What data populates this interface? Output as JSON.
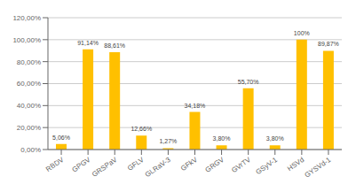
{
  "chart_data": {
    "type": "bar",
    "categories": [
      "RBDV",
      "GPGV",
      "GRSPaV",
      "GFLV",
      "GLRaV-3",
      "GFkV",
      "GRGV",
      "GVrTV",
      "GSyV-1",
      "HSVd",
      "GYSVd-1"
    ],
    "values": [
      5.06,
      91.14,
      88.61,
      12.66,
      1.27,
      34.18,
      3.8,
      55.7,
      3.8,
      100.0,
      89.87
    ],
    "value_labels": [
      "5,06%",
      "91,14%",
      "88,61%",
      "12,66%",
      "1,27%",
      "34,18%",
      "3,80%",
      "55,70%",
      "3,80%",
      "100%",
      "89,87%"
    ],
    "color": "#FFC000",
    "ylim": [
      0,
      120
    ],
    "yticks": [
      {
        "value": 0,
        "label": "0,00%"
      },
      {
        "value": 20,
        "label": "20,00%"
      },
      {
        "value": 40,
        "label": "40,00%"
      },
      {
        "value": 60,
        "label": "60,00%"
      },
      {
        "value": 80,
        "label": "80,00%"
      },
      {
        "value": 100,
        "label": "100,00%"
      },
      {
        "value": 120,
        "label": "120,00%"
      }
    ],
    "grid": true
  }
}
